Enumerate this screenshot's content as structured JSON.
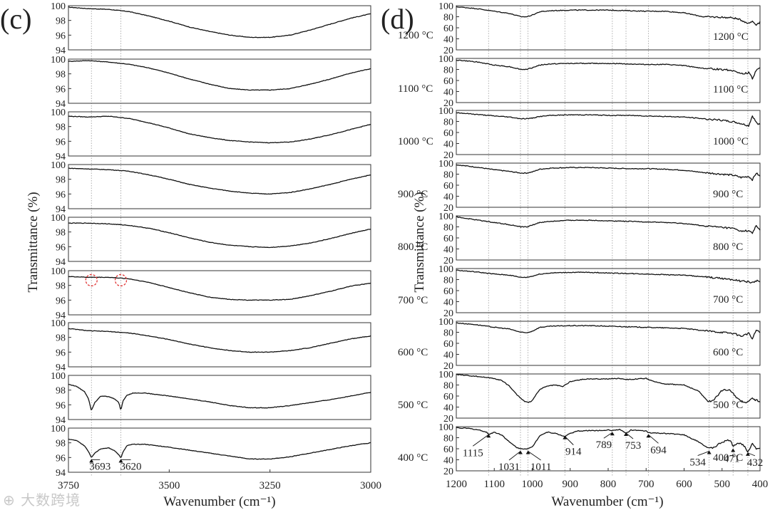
{
  "chart_data": [
    {
      "type": "line",
      "panel_label": "(c)",
      "xlabel": "Wavenumber (cm⁻¹)",
      "ylabel": "Transmittance (%)",
      "xlim": [
        3750,
        3000
      ],
      "ylim": [
        94,
        100
      ],
      "x_ticks": [
        "3750",
        "3500",
        "3250",
        "3000"
      ],
      "y_ticks": [
        "94",
        "96",
        "98",
        "100"
      ],
      "reference_lines": [
        3693,
        3620
      ],
      "marked_regions": [
        {
          "series": "700 °C",
          "x": 3693,
          "y": 98.7
        },
        {
          "series": "700 °C",
          "x": 3620,
          "y": 98.7
        }
      ],
      "peak_labels": [
        {
          "series": "400 °C",
          "text": "3693",
          "x": 3693,
          "y": 95.9
        },
        {
          "series": "400 °C",
          "text": "3620",
          "x": 3620,
          "y": 95.9
        }
      ],
      "series": [
        {
          "name": "1200 °C",
          "x": [
            3750,
            3700,
            3650,
            3600,
            3550,
            3500,
            3450,
            3400,
            3350,
            3300,
            3250,
            3200,
            3150,
            3100,
            3050,
            3000
          ],
          "values": [
            99.8,
            99.6,
            99.5,
            99.2,
            98.6,
            97.9,
            97.1,
            96.5,
            96.0,
            95.7,
            95.7,
            96.0,
            96.7,
            97.5,
            98.3,
            98.9
          ]
        },
        {
          "name": "1100 °C",
          "x": [
            3750,
            3700,
            3650,
            3600,
            3550,
            3500,
            3450,
            3400,
            3350,
            3300,
            3250,
            3200,
            3150,
            3100,
            3050,
            3000
          ],
          "values": [
            99.7,
            99.8,
            99.6,
            99.3,
            98.8,
            98.1,
            97.3,
            96.6,
            96.0,
            95.8,
            95.8,
            96.0,
            96.6,
            97.3,
            98.1,
            98.7
          ]
        },
        {
          "name": "1000 °C",
          "x": [
            3750,
            3700,
            3650,
            3600,
            3550,
            3500,
            3450,
            3400,
            3350,
            3300,
            3250,
            3200,
            3150,
            3100,
            3050,
            3000
          ],
          "values": [
            99.4,
            99.3,
            99.4,
            99.1,
            98.5,
            97.8,
            97.0,
            96.5,
            96.1,
            95.9,
            95.8,
            95.9,
            96.3,
            96.9,
            97.6,
            98.3
          ]
        },
        {
          "name": "900 °C",
          "x": [
            3750,
            3700,
            3650,
            3600,
            3550,
            3500,
            3450,
            3400,
            3350,
            3300,
            3250,
            3200,
            3150,
            3100,
            3050,
            3000
          ],
          "values": [
            99.5,
            99.4,
            99.3,
            99.1,
            98.6,
            98.0,
            97.3,
            96.8,
            96.4,
            96.1,
            96.0,
            96.2,
            96.7,
            97.3,
            98.0,
            98.6
          ]
        },
        {
          "name": "800 °C",
          "x": [
            3750,
            3700,
            3650,
            3600,
            3550,
            3500,
            3450,
            3400,
            3350,
            3300,
            3250,
            3200,
            3150,
            3100,
            3050,
            3000
          ],
          "values": [
            99.2,
            99.2,
            99.1,
            98.9,
            98.5,
            97.9,
            97.2,
            96.6,
            96.2,
            96.0,
            95.9,
            96.1,
            96.5,
            97.1,
            97.8,
            98.4
          ]
        },
        {
          "name": "700 °C",
          "x": [
            3750,
            3700,
            3650,
            3600,
            3550,
            3500,
            3450,
            3400,
            3350,
            3300,
            3250,
            3200,
            3150,
            3100,
            3050,
            3000
          ],
          "values": [
            99.2,
            99.1,
            99.1,
            98.9,
            98.4,
            97.7,
            97.0,
            96.4,
            96.1,
            96.0,
            96.0,
            96.1,
            96.6,
            97.2,
            97.9,
            98.3
          ]
        },
        {
          "name": "600 °C",
          "x": [
            3750,
            3700,
            3650,
            3600,
            3550,
            3500,
            3450,
            3400,
            3350,
            3300,
            3250,
            3200,
            3150,
            3100,
            3050,
            3000
          ],
          "values": [
            99.2,
            98.9,
            98.8,
            98.6,
            98.2,
            97.7,
            97.1,
            96.6,
            96.2,
            96.0,
            96.0,
            96.2,
            96.6,
            97.2,
            97.8,
            98.2
          ]
        },
        {
          "name": "500 °C",
          "x": [
            3750,
            3730,
            3710,
            3700,
            3693,
            3685,
            3670,
            3650,
            3635,
            3625,
            3620,
            3615,
            3605,
            3590,
            3560,
            3500,
            3450,
            3400,
            3350,
            3300,
            3250,
            3200,
            3150,
            3100,
            3050,
            3000
          ],
          "values": [
            98.8,
            98.5,
            97.8,
            96.8,
            95.2,
            96.3,
            97.2,
            97.1,
            96.8,
            96.3,
            95.2,
            96.5,
            97.3,
            97.6,
            97.6,
            97.2,
            96.8,
            96.4,
            95.9,
            95.6,
            95.6,
            95.9,
            96.3,
            96.7,
            97.2,
            97.7
          ]
        },
        {
          "name": "400 °C",
          "x": [
            3750,
            3730,
            3710,
            3700,
            3693,
            3685,
            3670,
            3650,
            3635,
            3625,
            3620,
            3615,
            3605,
            3590,
            3560,
            3500,
            3450,
            3400,
            3350,
            3300,
            3250,
            3200,
            3150,
            3100,
            3050,
            3000
          ],
          "values": [
            98.5,
            98.3,
            97.6,
            96.8,
            96.0,
            96.6,
            97.2,
            97.3,
            96.9,
            96.4,
            95.9,
            96.7,
            97.6,
            97.8,
            97.8,
            97.4,
            97.0,
            96.6,
            96.2,
            95.8,
            95.8,
            96.1,
            96.6,
            97.1,
            97.6,
            98.0
          ]
        }
      ]
    },
    {
      "type": "line",
      "panel_label": "(d)",
      "xlabel": "Wavenumber (cm⁻¹)",
      "ylabel": "Transmittance (%)",
      "xlim": [
        1200,
        400
      ],
      "ylim": [
        20,
        100
      ],
      "x_ticks": [
        "1200",
        "1100",
        "1000",
        "900",
        "800",
        "700",
        "600",
        "500",
        "400"
      ],
      "y_ticks": [
        "20",
        "40",
        "60",
        "80",
        "100"
      ],
      "reference_lines": [
        1115,
        1031,
        1011,
        914,
        789,
        753,
        694,
        534,
        471,
        432
      ],
      "peak_labels": [
        {
          "series": "400 °C",
          "text": "1115",
          "x": 1115,
          "y": 88
        },
        {
          "series": "400 °C",
          "text": "1031",
          "x": 1031,
          "y": 58
        },
        {
          "series": "400 °C",
          "text": "1011",
          "x": 1011,
          "y": 58
        },
        {
          "series": "400 °C",
          "text": "914",
          "x": 914,
          "y": 85
        },
        {
          "series": "400 °C",
          "text": "789",
          "x": 789,
          "y": 92
        },
        {
          "series": "400 °C",
          "text": "753",
          "x": 753,
          "y": 91
        },
        {
          "series": "400 °C",
          "text": "694",
          "x": 694,
          "y": 88
        },
        {
          "series": "400 °C",
          "text": "534",
          "x": 534,
          "y": 58
        },
        {
          "series": "400 °C",
          "text": "471",
          "x": 471,
          "y": 62
        },
        {
          "series": "400 °C",
          "text": "432",
          "x": 432,
          "y": 55
        }
      ],
      "series": [
        {
          "name": "1200 °C",
          "x": [
            1200,
            1150,
            1100,
            1060,
            1030,
            1015,
            1000,
            980,
            950,
            900,
            850,
            800,
            750,
            700,
            650,
            600,
            550,
            500,
            470,
            450,
            430,
            420,
            410,
            400
          ],
          "values": [
            98,
            95,
            90,
            86,
            80,
            80,
            83,
            89,
            91,
            92,
            92,
            92,
            91,
            90,
            90,
            87,
            80,
            79,
            78,
            74,
            68,
            72,
            66,
            70
          ]
        },
        {
          "name": "1100 °C",
          "x": [
            1200,
            1150,
            1100,
            1060,
            1030,
            1015,
            1000,
            980,
            950,
            900,
            850,
            800,
            750,
            700,
            650,
            600,
            550,
            500,
            470,
            450,
            430,
            420,
            410,
            400
          ],
          "values": [
            97,
            94,
            88,
            85,
            80,
            80,
            83,
            88,
            90,
            91,
            91,
            91,
            90,
            89,
            89,
            87,
            82,
            80,
            78,
            72,
            74,
            64,
            78,
            82
          ]
        },
        {
          "name": "1000 °C",
          "x": [
            1200,
            1150,
            1100,
            1060,
            1030,
            1015,
            1000,
            980,
            950,
            900,
            850,
            800,
            750,
            700,
            650,
            600,
            550,
            500,
            470,
            450,
            430,
            420,
            410,
            400
          ],
          "values": [
            96,
            93,
            90,
            88,
            85,
            85,
            86,
            89,
            91,
            92,
            92,
            91,
            91,
            90,
            89,
            88,
            85,
            82,
            79,
            76,
            72,
            90,
            78,
            74
          ]
        },
        {
          "name": "900 °C",
          "x": [
            1200,
            1150,
            1100,
            1060,
            1030,
            1015,
            1000,
            980,
            950,
            900,
            850,
            800,
            750,
            700,
            650,
            600,
            550,
            500,
            470,
            450,
            430,
            420,
            410,
            400
          ],
          "values": [
            97,
            93,
            88,
            85,
            82,
            82,
            84,
            89,
            91,
            92,
            92,
            91,
            90,
            90,
            89,
            87,
            83,
            80,
            78,
            74,
            76,
            70,
            82,
            76
          ]
        },
        {
          "name": "800 °C",
          "x": [
            1200,
            1150,
            1100,
            1060,
            1030,
            1015,
            1000,
            980,
            950,
            900,
            850,
            800,
            750,
            700,
            650,
            600,
            550,
            500,
            470,
            450,
            430,
            420,
            410,
            400
          ],
          "values": [
            98,
            93,
            88,
            84,
            80,
            80,
            83,
            88,
            90,
            92,
            92,
            91,
            90,
            89,
            88,
            86,
            82,
            79,
            77,
            72,
            73,
            68,
            82,
            74
          ]
        },
        {
          "name": "700 °C",
          "x": [
            1200,
            1150,
            1100,
            1060,
            1030,
            1015,
            1000,
            980,
            950,
            900,
            850,
            800,
            750,
            700,
            650,
            600,
            550,
            500,
            470,
            450,
            430,
            420,
            410,
            400
          ],
          "values": [
            97,
            94,
            90,
            88,
            84,
            84,
            86,
            90,
            92,
            93,
            93,
            92,
            91,
            90,
            89,
            88,
            85,
            82,
            80,
            77,
            76,
            74,
            78,
            76
          ]
        },
        {
          "name": "600 °C",
          "x": [
            1200,
            1150,
            1100,
            1060,
            1030,
            1015,
            1000,
            980,
            950,
            900,
            850,
            800,
            750,
            700,
            650,
            600,
            550,
            500,
            470,
            450,
            430,
            420,
            410,
            400
          ],
          "values": [
            97,
            94,
            89,
            86,
            80,
            79,
            82,
            89,
            91,
            92,
            92,
            91,
            90,
            89,
            88,
            87,
            83,
            80,
            78,
            73,
            78,
            68,
            84,
            80
          ]
        },
        {
          "name": "500 °C",
          "x": [
            1200,
            1150,
            1100,
            1080,
            1060,
            1040,
            1020,
            1010,
            1000,
            980,
            960,
            940,
            920,
            900,
            870,
            850,
            800,
            770,
            750,
            720,
            700,
            680,
            650,
            600,
            560,
            540,
            530,
            520,
            500,
            480,
            460,
            440,
            420,
            400
          ],
          "values": [
            99,
            96,
            92,
            88,
            78,
            62,
            50,
            48,
            52,
            72,
            78,
            80,
            77,
            86,
            90,
            91,
            91,
            92,
            90,
            91,
            92,
            86,
            82,
            80,
            68,
            52,
            50,
            55,
            70,
            72,
            56,
            48,
            55,
            50
          ]
        },
        {
          "name": "400 °C",
          "x": [
            1200,
            1170,
            1140,
            1120,
            1115,
            1100,
            1080,
            1060,
            1040,
            1031,
            1020,
            1011,
            1000,
            980,
            960,
            940,
            914,
            900,
            880,
            850,
            820,
            800,
            789,
            770,
            753,
            740,
            720,
            700,
            694,
            660,
            630,
            600,
            560,
            534,
            520,
            500,
            480,
            471,
            460,
            445,
            432,
            420,
            410,
            400
          ],
          "values": [
            98,
            97,
            94,
            90,
            86,
            90,
            85,
            72,
            62,
            60,
            60,
            60,
            63,
            84,
            90,
            88,
            82,
            88,
            92,
            93,
            93,
            94,
            93,
            95,
            88,
            94,
            93,
            92,
            89,
            88,
            87,
            85,
            72,
            60,
            63,
            72,
            76,
            65,
            70,
            68,
            55,
            70,
            60,
            62
          ]
        }
      ]
    }
  ],
  "watermark": "⊕ 大数跨境"
}
